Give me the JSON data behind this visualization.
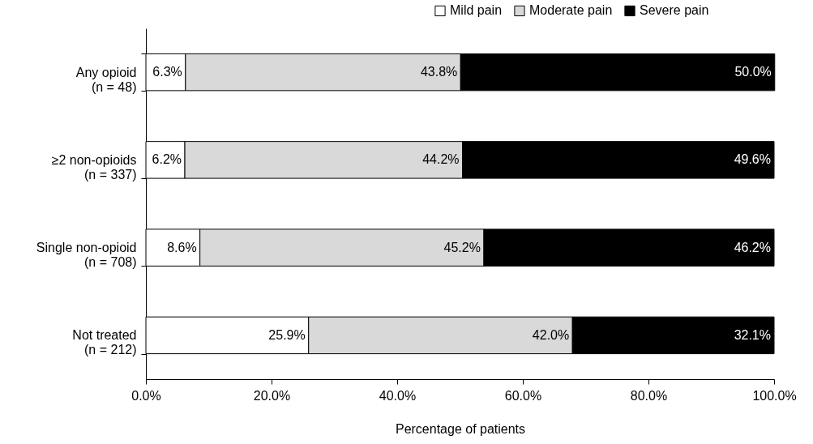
{
  "chart_data": {
    "type": "bar",
    "orientation": "horizontal",
    "stacked": true,
    "xlabel": "Percentage of patients",
    "categories": [
      "Any opioid\n(n = 48)",
      "≥2 non-opioids\n(n = 337)",
      "Single non-opioid\n(n = 708)",
      "Not treated\n(n = 212)"
    ],
    "series": [
      {
        "name": "Mild pain",
        "color": "#ffffff",
        "values": [
          6.3,
          6.2,
          8.6,
          25.9
        ],
        "value_labels": [
          "6.3%",
          "6.2%",
          "8.6%",
          "25.9%"
        ]
      },
      {
        "name": "Moderate pain",
        "color": "#d9d9d9",
        "values": [
          43.8,
          44.2,
          45.2,
          42.0
        ],
        "value_labels": [
          "43.8%",
          "44.2%",
          "45.2%",
          "42.0%"
        ]
      },
      {
        "name": "Severe pain",
        "color": "#000000",
        "values": [
          50.0,
          49.6,
          46.2,
          32.1
        ],
        "value_labels": [
          "50.0%",
          "49.6%",
          "46.2%",
          "32.1%"
        ]
      }
    ],
    "xlim": [
      0,
      100
    ],
    "xticks": [
      {
        "value": 0,
        "label": "0.0%"
      },
      {
        "value": 20,
        "label": "20.0%"
      },
      {
        "value": 40,
        "label": "40.0%"
      },
      {
        "value": 60,
        "label": "60.0%"
      },
      {
        "value": 80,
        "label": "80.0%"
      },
      {
        "value": 100,
        "label": "100.0%"
      }
    ],
    "grid": false,
    "legend": "top right"
  }
}
